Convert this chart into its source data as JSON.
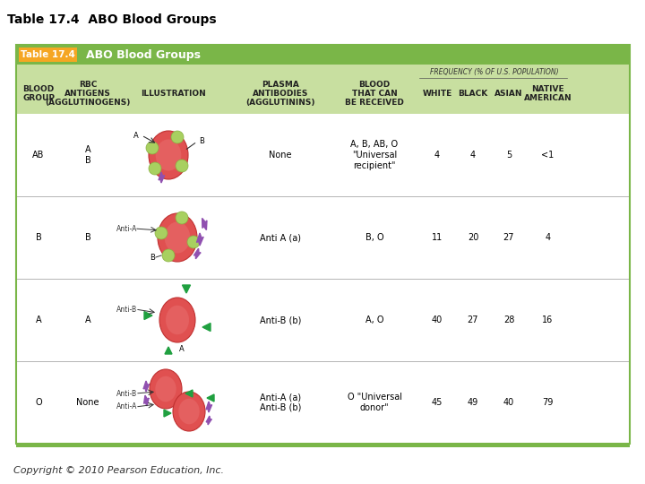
{
  "title": "Table 17.4  ABO Blood Groups",
  "table_title": "Table 17.4",
  "table_subtitle": "ABO Blood Groups",
  "header_bg": "#7ab648",
  "header_text_color": "#ffffff",
  "subheader_bg": "#c8dfa0",
  "row_bg": "#ffffff",
  "border_color": "#7ab648",
  "orange_bg": "#f5a623",
  "col_headers": [
    "BLOOD\nGROUP",
    "RBC\nANTIGENS\n(AGGLUTINOGENS)",
    "ILLUSTRATION",
    "PLASMA\nANTIBODIES\n(AGGLUTININS)",
    "BLOOD\nTHAT CAN\nBE RECEIVED",
    "WHITE",
    "BLACK",
    "ASIAN",
    "NATIVE\nAMERICAN"
  ],
  "freq_header": "FREQUENCY (% OF U.S. POPULATION)",
  "rows": [
    {
      "group": "AB",
      "antigens": "A\nB",
      "antibodies": "None",
      "can_receive": "A, B, AB, O\n\"Universal\nrecipient\"",
      "white": "4",
      "black": "4",
      "asian": "5",
      "native": "<1"
    },
    {
      "group": "B",
      "antigens": "B",
      "antibodies": "Anti A (a)",
      "can_receive": "B, O",
      "white": "11",
      "black": "20",
      "asian": "27",
      "native": "4"
    },
    {
      "group": "A",
      "antigens": "A",
      "antibodies": "Anti-B (b)",
      "can_receive": "A, O",
      "white": "40",
      "black": "27",
      "asian": "28",
      "native": "16"
    },
    {
      "group": "O",
      "antigens": "None",
      "antibodies": "Anti-A (a)\nAnti-B (b)",
      "can_receive": "O \"Universal\ndonor\"",
      "white": "45",
      "black": "49",
      "asian": "40",
      "native": "79"
    }
  ],
  "copyright": "Copyright © 2010 Pearson Education, Inc.",
  "title_fontsize": 10,
  "body_fontsize": 7,
  "small_fontsize": 6.5
}
